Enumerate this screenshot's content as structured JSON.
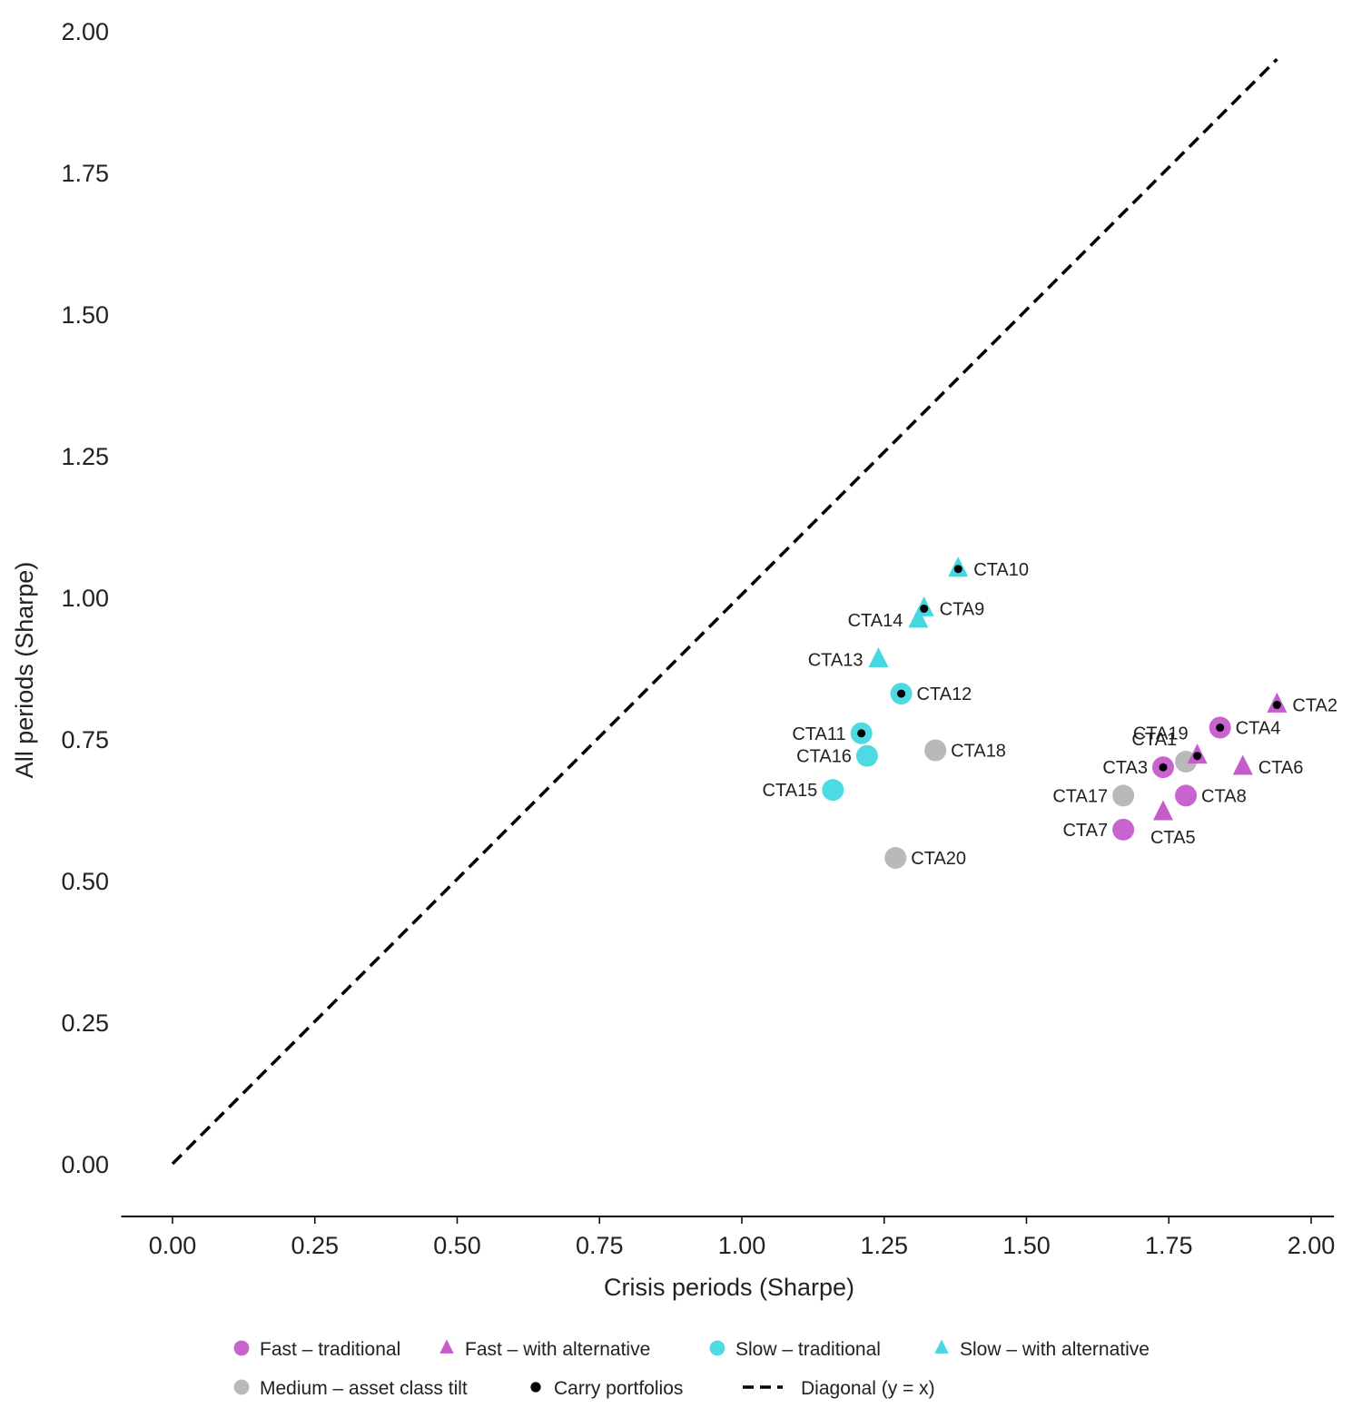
{
  "chart_data": {
    "type": "scatter",
    "xlabel": "Crisis periods (Sharpe)",
    "ylabel": "All periods (Sharpe)",
    "xlim": [
      -0.09,
      2.04
    ],
    "ylim": [
      -0.09,
      2.03
    ],
    "x_ticks": [
      "0.00",
      "0.25",
      "0.50",
      "0.75",
      "1.00",
      "1.25",
      "1.50",
      "1.75",
      "2.00"
    ],
    "y_ticks": [
      "0.00",
      "0.25",
      "0.50",
      "0.75",
      "1.00",
      "1.25",
      "1.50",
      "1.75",
      "2.00"
    ],
    "grid": false,
    "legend_position": "bottom-center",
    "colors": {
      "fast": "#c45ccc",
      "slow": "#45d8e0",
      "medium": "#b9b9b9",
      "carry": "#000000",
      "diagonal": "#000000"
    },
    "diagonal": {
      "x": [
        0.0,
        1.94
      ],
      "y": [
        0.0,
        1.95
      ]
    },
    "points": [
      {
        "label": "CTA1",
        "x": 1.78,
        "y": 0.71,
        "group": "medium",
        "marker": "circle",
        "carry": false,
        "label_pos": "above-left"
      },
      {
        "label": "CTA2",
        "x": 1.94,
        "y": 0.81,
        "group": "fast",
        "marker": "triangle",
        "carry": true,
        "label_pos": "right"
      },
      {
        "label": "CTA3",
        "x": 1.74,
        "y": 0.7,
        "group": "fast",
        "marker": "circle",
        "carry": true,
        "label_pos": "left"
      },
      {
        "label": "CTA4",
        "x": 1.84,
        "y": 0.77,
        "group": "fast",
        "marker": "circle",
        "carry": true,
        "label_pos": "right"
      },
      {
        "label": "CTA5",
        "x": 1.74,
        "y": 0.62,
        "group": "fast",
        "marker": "triangle",
        "carry": false,
        "label_pos": "below-right"
      },
      {
        "label": "CTA6",
        "x": 1.88,
        "y": 0.7,
        "group": "fast",
        "marker": "triangle",
        "carry": false,
        "label_pos": "right"
      },
      {
        "label": "CTA7",
        "x": 1.67,
        "y": 0.59,
        "group": "fast",
        "marker": "circle",
        "carry": false,
        "label_pos": "left"
      },
      {
        "label": "CTA8",
        "x": 1.78,
        "y": 0.65,
        "group": "fast",
        "marker": "circle",
        "carry": false,
        "label_pos": "right"
      },
      {
        "label": "CTA9",
        "x": 1.32,
        "y": 0.98,
        "group": "slow",
        "marker": "triangle",
        "carry": true,
        "label_pos": "right"
      },
      {
        "label": "CTA10",
        "x": 1.38,
        "y": 1.05,
        "group": "slow",
        "marker": "triangle",
        "carry": true,
        "label_pos": "right"
      },
      {
        "label": "CTA11",
        "x": 1.21,
        "y": 0.76,
        "group": "slow",
        "marker": "circle",
        "carry": true,
        "label_pos": "left"
      },
      {
        "label": "CTA12",
        "x": 1.28,
        "y": 0.83,
        "group": "slow",
        "marker": "circle",
        "carry": true,
        "label_pos": "right"
      },
      {
        "label": "CTA13",
        "x": 1.24,
        "y": 0.89,
        "group": "slow",
        "marker": "triangle",
        "carry": false,
        "label_pos": "left"
      },
      {
        "label": "CTA14",
        "x": 1.31,
        "y": 0.96,
        "group": "slow",
        "marker": "triangle",
        "carry": false,
        "label_pos": "left"
      },
      {
        "label": "CTA15",
        "x": 1.16,
        "y": 0.66,
        "group": "slow",
        "marker": "circle",
        "carry": false,
        "label_pos": "left"
      },
      {
        "label": "CTA16",
        "x": 1.22,
        "y": 0.72,
        "group": "slow",
        "marker": "circle",
        "carry": false,
        "label_pos": "left"
      },
      {
        "label": "CTA17",
        "x": 1.67,
        "y": 0.65,
        "group": "medium",
        "marker": "circle",
        "carry": false,
        "label_pos": "left"
      },
      {
        "label": "CTA18",
        "x": 1.34,
        "y": 0.73,
        "group": "medium",
        "marker": "circle",
        "carry": false,
        "label_pos": "right"
      },
      {
        "label": "CTA19",
        "x": 1.8,
        "y": 0.72,
        "group": "fast",
        "marker": "triangle",
        "carry": true,
        "label_pos": "above-left"
      },
      {
        "label": "CTA20",
        "x": 1.27,
        "y": 0.54,
        "group": "medium",
        "marker": "circle",
        "carry": false,
        "label_pos": "right"
      }
    ],
    "legend": [
      {
        "label": "Fast – traditional",
        "marker": "circle",
        "group": "fast"
      },
      {
        "label": "Fast – with alternative",
        "marker": "triangle",
        "group": "fast"
      },
      {
        "label": "Slow – traditional",
        "marker": "circle",
        "group": "slow"
      },
      {
        "label": "Slow – with alternative",
        "marker": "triangle",
        "group": "slow"
      },
      {
        "label": "Medium – asset class tilt",
        "marker": "circle",
        "group": "medium"
      },
      {
        "label": "Carry portfolios",
        "marker": "dot",
        "group": "carry"
      },
      {
        "label": "Diagonal (y = x)",
        "marker": "dash",
        "group": "diagonal"
      }
    ]
  }
}
